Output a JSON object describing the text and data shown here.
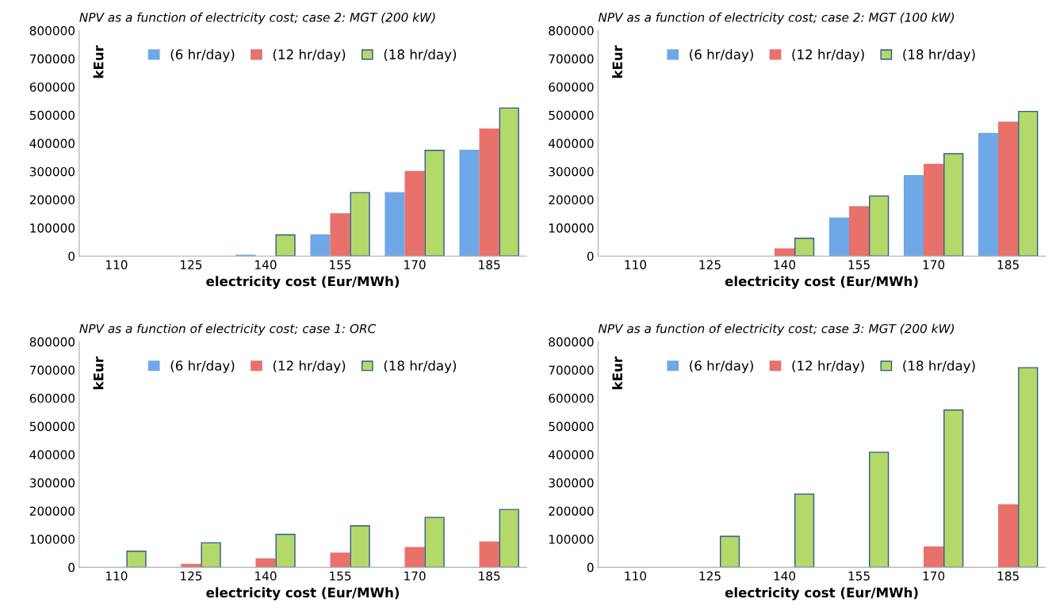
{
  "chart_data": [
    {
      "type": "bar",
      "title": "NPV as a function of electricity cost; case 2: MGT (200 kW)",
      "xlabel": "electricity cost (Eur/MWh)",
      "ylabel": "kEur",
      "categories": [
        "110",
        "125",
        "140",
        "155",
        "170",
        "185"
      ],
      "series": [
        {
          "name": "(6 hr/day)",
          "color": "#6fa8e6",
          "values": [
            0,
            0,
            3000,
            75000,
            225000,
            375000
          ]
        },
        {
          "name": "(12 hr/day)",
          "color": "#e8716b",
          "values": [
            0,
            0,
            0,
            150000,
            300000,
            450000
          ]
        },
        {
          "name": "(18 hr/day)",
          "color": "#b5d86a",
          "values": [
            0,
            0,
            75000,
            225000,
            375000,
            525000
          ]
        }
      ],
      "ylim": [
        0,
        800000
      ],
      "yticks": [
        0,
        100000,
        200000,
        300000,
        400000,
        500000,
        600000,
        700000,
        800000
      ],
      "legend": "top",
      "grid": false
    },
    {
      "type": "bar",
      "title": "NPV as a function of electricity cost; case 2: MGT (100 kW)",
      "xlabel": "electricity cost (Eur/MWh)",
      "ylabel": "kEur",
      "categories": [
        "110",
        "125",
        "140",
        "155",
        "170",
        "185"
      ],
      "series": [
        {
          "name": "(6 hr/day)",
          "color": "#6fa8e6",
          "values": [
            0,
            0,
            0,
            135000,
            285000,
            435000
          ]
        },
        {
          "name": "(12 hr/day)",
          "color": "#e8716b",
          "values": [
            0,
            0,
            25000,
            175000,
            325000,
            475000
          ]
        },
        {
          "name": "(18 hr/day)",
          "color": "#b5d86a",
          "values": [
            0,
            0,
            63000,
            213000,
            363000,
            513000
          ]
        }
      ],
      "ylim": [
        0,
        800000
      ],
      "yticks": [
        0,
        100000,
        200000,
        300000,
        400000,
        500000,
        600000,
        700000,
        800000
      ],
      "legend": "top",
      "grid": false
    },
    {
      "type": "bar",
      "title": "NPV as a function of electricity cost; case 1: ORC",
      "xlabel": "electricity cost (Eur/MWh)",
      "ylabel": "kEur",
      "categories": [
        "110",
        "125",
        "140",
        "155",
        "170",
        "185"
      ],
      "series": [
        {
          "name": "(6 hr/day)",
          "color": "#6fa8e6",
          "values": [
            0,
            0,
            0,
            0,
            0,
            0
          ]
        },
        {
          "name": "(12 hr/day)",
          "color": "#e8716b",
          "values": [
            0,
            10000,
            30000,
            50000,
            70000,
            90000
          ]
        },
        {
          "name": "(18 hr/day)",
          "color": "#b5d86a",
          "values": [
            57000,
            87000,
            117000,
            147000,
            177000,
            205000
          ]
        }
      ],
      "ylim": [
        0,
        800000
      ],
      "yticks": [
        0,
        100000,
        200000,
        300000,
        400000,
        500000,
        600000,
        700000,
        800000
      ],
      "legend": "top",
      "grid": false
    },
    {
      "type": "bar",
      "title": "NPV as a function of electricity cost; case 3: MGT (200 kW)",
      "xlabel": "electricity cost (Eur/MWh)",
      "ylabel": "kEur",
      "categories": [
        "110",
        "125",
        "140",
        "155",
        "170",
        "185"
      ],
      "series": [
        {
          "name": "(6 hr/day)",
          "color": "#6fa8e6",
          "values": [
            0,
            0,
            0,
            0,
            0,
            0
          ]
        },
        {
          "name": "(12 hr/day)",
          "color": "#e8716b",
          "values": [
            0,
            0,
            0,
            0,
            72000,
            222000
          ]
        },
        {
          "name": "(18 hr/day)",
          "color": "#b5d86a",
          "values": [
            0,
            110000,
            260000,
            408000,
            558000,
            708000
          ]
        }
      ],
      "ylim": [
        0,
        800000
      ],
      "yticks": [
        0,
        100000,
        200000,
        300000,
        400000,
        500000,
        600000,
        700000,
        800000
      ],
      "legend": "top",
      "grid": false
    }
  ]
}
